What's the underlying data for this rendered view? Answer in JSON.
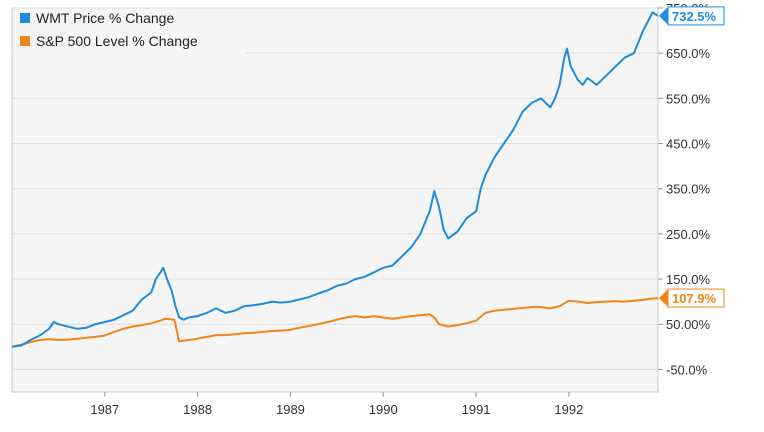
{
  "chart_data": {
    "type": "line",
    "legend_position": "top-left",
    "grid": "horizontal",
    "y_axis_side": "right",
    "y_unit": "%",
    "xlim": [
      1986.0,
      1992.96
    ],
    "ylim": [
      -100,
      750
    ],
    "x_ticks": [
      {
        "value": 1987,
        "label": "1987"
      },
      {
        "value": 1988,
        "label": "1988"
      },
      {
        "value": 1989,
        "label": "1989"
      },
      {
        "value": 1990,
        "label": "1990"
      },
      {
        "value": 1991,
        "label": "1991"
      },
      {
        "value": 1992,
        "label": "1992"
      }
    ],
    "y_ticks": [
      {
        "value": -50,
        "label": "-50.0%"
      },
      {
        "value": 50,
        "label": "50.00%"
      },
      {
        "value": 150,
        "label": "150.0%"
      },
      {
        "value": 250,
        "label": "250.0%"
      },
      {
        "value": 350,
        "label": "350.0%"
      },
      {
        "value": 450,
        "label": "450.0%"
      },
      {
        "value": 550,
        "label": "550.0%"
      },
      {
        "value": 650,
        "label": "650.0%"
      },
      {
        "value": 750,
        "label": "750.0%"
      }
    ],
    "series": [
      {
        "name": "WMT Price % Change",
        "color": "#1f8be0",
        "end_label": "732.5%",
        "points": [
          [
            1986.0,
            0
          ],
          [
            1986.1,
            3
          ],
          [
            1986.2,
            15
          ],
          [
            1986.3,
            25
          ],
          [
            1986.4,
            40
          ],
          [
            1986.45,
            55
          ],
          [
            1986.5,
            50
          ],
          [
            1986.6,
            45
          ],
          [
            1986.7,
            40
          ],
          [
            1986.8,
            42
          ],
          [
            1986.9,
            50
          ],
          [
            1987.0,
            55
          ],
          [
            1987.1,
            60
          ],
          [
            1987.2,
            70
          ],
          [
            1987.3,
            80
          ],
          [
            1987.4,
            105
          ],
          [
            1987.5,
            120
          ],
          [
            1987.55,
            150
          ],
          [
            1987.6,
            165
          ],
          [
            1987.63,
            175
          ],
          [
            1987.67,
            150
          ],
          [
            1987.72,
            125
          ],
          [
            1987.76,
            90
          ],
          [
            1987.8,
            65
          ],
          [
            1987.85,
            60
          ],
          [
            1987.9,
            65
          ],
          [
            1988.0,
            68
          ],
          [
            1988.1,
            75
          ],
          [
            1988.2,
            85
          ],
          [
            1988.3,
            75
          ],
          [
            1988.4,
            80
          ],
          [
            1988.5,
            90
          ],
          [
            1988.6,
            92
          ],
          [
            1988.7,
            95
          ],
          [
            1988.8,
            100
          ],
          [
            1988.9,
            98
          ],
          [
            1989.0,
            100
          ],
          [
            1989.1,
            105
          ],
          [
            1989.2,
            110
          ],
          [
            1989.3,
            118
          ],
          [
            1989.4,
            125
          ],
          [
            1989.5,
            135
          ],
          [
            1989.6,
            140
          ],
          [
            1989.7,
            150
          ],
          [
            1989.8,
            155
          ],
          [
            1989.9,
            165
          ],
          [
            1990.0,
            175
          ],
          [
            1990.1,
            180
          ],
          [
            1990.2,
            200
          ],
          [
            1990.3,
            220
          ],
          [
            1990.4,
            250
          ],
          [
            1990.5,
            300
          ],
          [
            1990.55,
            345
          ],
          [
            1990.6,
            310
          ],
          [
            1990.65,
            260
          ],
          [
            1990.7,
            240
          ],
          [
            1990.8,
            255
          ],
          [
            1990.9,
            285
          ],
          [
            1991.0,
            300
          ],
          [
            1991.05,
            350
          ],
          [
            1991.1,
            380
          ],
          [
            1991.2,
            420
          ],
          [
            1991.3,
            450
          ],
          [
            1991.4,
            480
          ],
          [
            1991.5,
            520
          ],
          [
            1991.6,
            540
          ],
          [
            1991.7,
            550
          ],
          [
            1991.8,
            530
          ],
          [
            1991.85,
            550
          ],
          [
            1991.9,
            580
          ],
          [
            1991.95,
            640
          ],
          [
            1991.98,
            660
          ],
          [
            1992.02,
            620
          ],
          [
            1992.1,
            590
          ],
          [
            1992.15,
            580
          ],
          [
            1992.2,
            595
          ],
          [
            1992.3,
            580
          ],
          [
            1992.4,
            600
          ],
          [
            1992.5,
            620
          ],
          [
            1992.6,
            640
          ],
          [
            1992.7,
            650
          ],
          [
            1992.8,
            700
          ],
          [
            1992.85,
            720
          ],
          [
            1992.9,
            740
          ],
          [
            1992.96,
            732.5
          ]
        ]
      },
      {
        "name": "S&P 500 Level % Change",
        "color": "#f28518",
        "end_label": "107.9%",
        "points": [
          [
            1986.0,
            0
          ],
          [
            1986.1,
            5
          ],
          [
            1986.2,
            10
          ],
          [
            1986.3,
            15
          ],
          [
            1986.4,
            17
          ],
          [
            1986.5,
            15
          ],
          [
            1986.6,
            16
          ],
          [
            1986.7,
            18
          ],
          [
            1986.8,
            20
          ],
          [
            1986.9,
            22
          ],
          [
            1987.0,
            25
          ],
          [
            1987.1,
            33
          ],
          [
            1987.2,
            40
          ],
          [
            1987.3,
            45
          ],
          [
            1987.4,
            48
          ],
          [
            1987.5,
            52
          ],
          [
            1987.6,
            58
          ],
          [
            1987.65,
            62
          ],
          [
            1987.75,
            60
          ],
          [
            1987.8,
            12
          ],
          [
            1987.9,
            15
          ],
          [
            1988.0,
            18
          ],
          [
            1988.1,
            22
          ],
          [
            1988.2,
            26
          ],
          [
            1988.3,
            26
          ],
          [
            1988.4,
            28
          ],
          [
            1988.5,
            30
          ],
          [
            1988.6,
            31
          ],
          [
            1988.7,
            33
          ],
          [
            1988.8,
            35
          ],
          [
            1988.9,
            36
          ],
          [
            1989.0,
            38
          ],
          [
            1989.1,
            42
          ],
          [
            1989.2,
            46
          ],
          [
            1989.3,
            50
          ],
          [
            1989.4,
            55
          ],
          [
            1989.5,
            60
          ],
          [
            1989.6,
            65
          ],
          [
            1989.7,
            68
          ],
          [
            1989.8,
            65
          ],
          [
            1989.9,
            68
          ],
          [
            1990.0,
            65
          ],
          [
            1990.1,
            62
          ],
          [
            1990.2,
            65
          ],
          [
            1990.3,
            68
          ],
          [
            1990.4,
            70
          ],
          [
            1990.5,
            72
          ],
          [
            1990.55,
            65
          ],
          [
            1990.6,
            50
          ],
          [
            1990.7,
            45
          ],
          [
            1990.8,
            48
          ],
          [
            1990.9,
            52
          ],
          [
            1991.0,
            58
          ],
          [
            1991.1,
            75
          ],
          [
            1991.2,
            80
          ],
          [
            1991.3,
            82
          ],
          [
            1991.4,
            84
          ],
          [
            1991.5,
            86
          ],
          [
            1991.6,
            88
          ],
          [
            1991.7,
            88
          ],
          [
            1991.8,
            85
          ],
          [
            1991.9,
            90
          ],
          [
            1992.0,
            102
          ],
          [
            1992.1,
            100
          ],
          [
            1992.2,
            97
          ],
          [
            1992.3,
            99
          ],
          [
            1992.4,
            100
          ],
          [
            1992.5,
            101
          ],
          [
            1992.6,
            100
          ],
          [
            1992.7,
            102
          ],
          [
            1992.8,
            104
          ],
          [
            1992.9,
            107
          ],
          [
            1992.96,
            107.9
          ]
        ]
      }
    ]
  }
}
